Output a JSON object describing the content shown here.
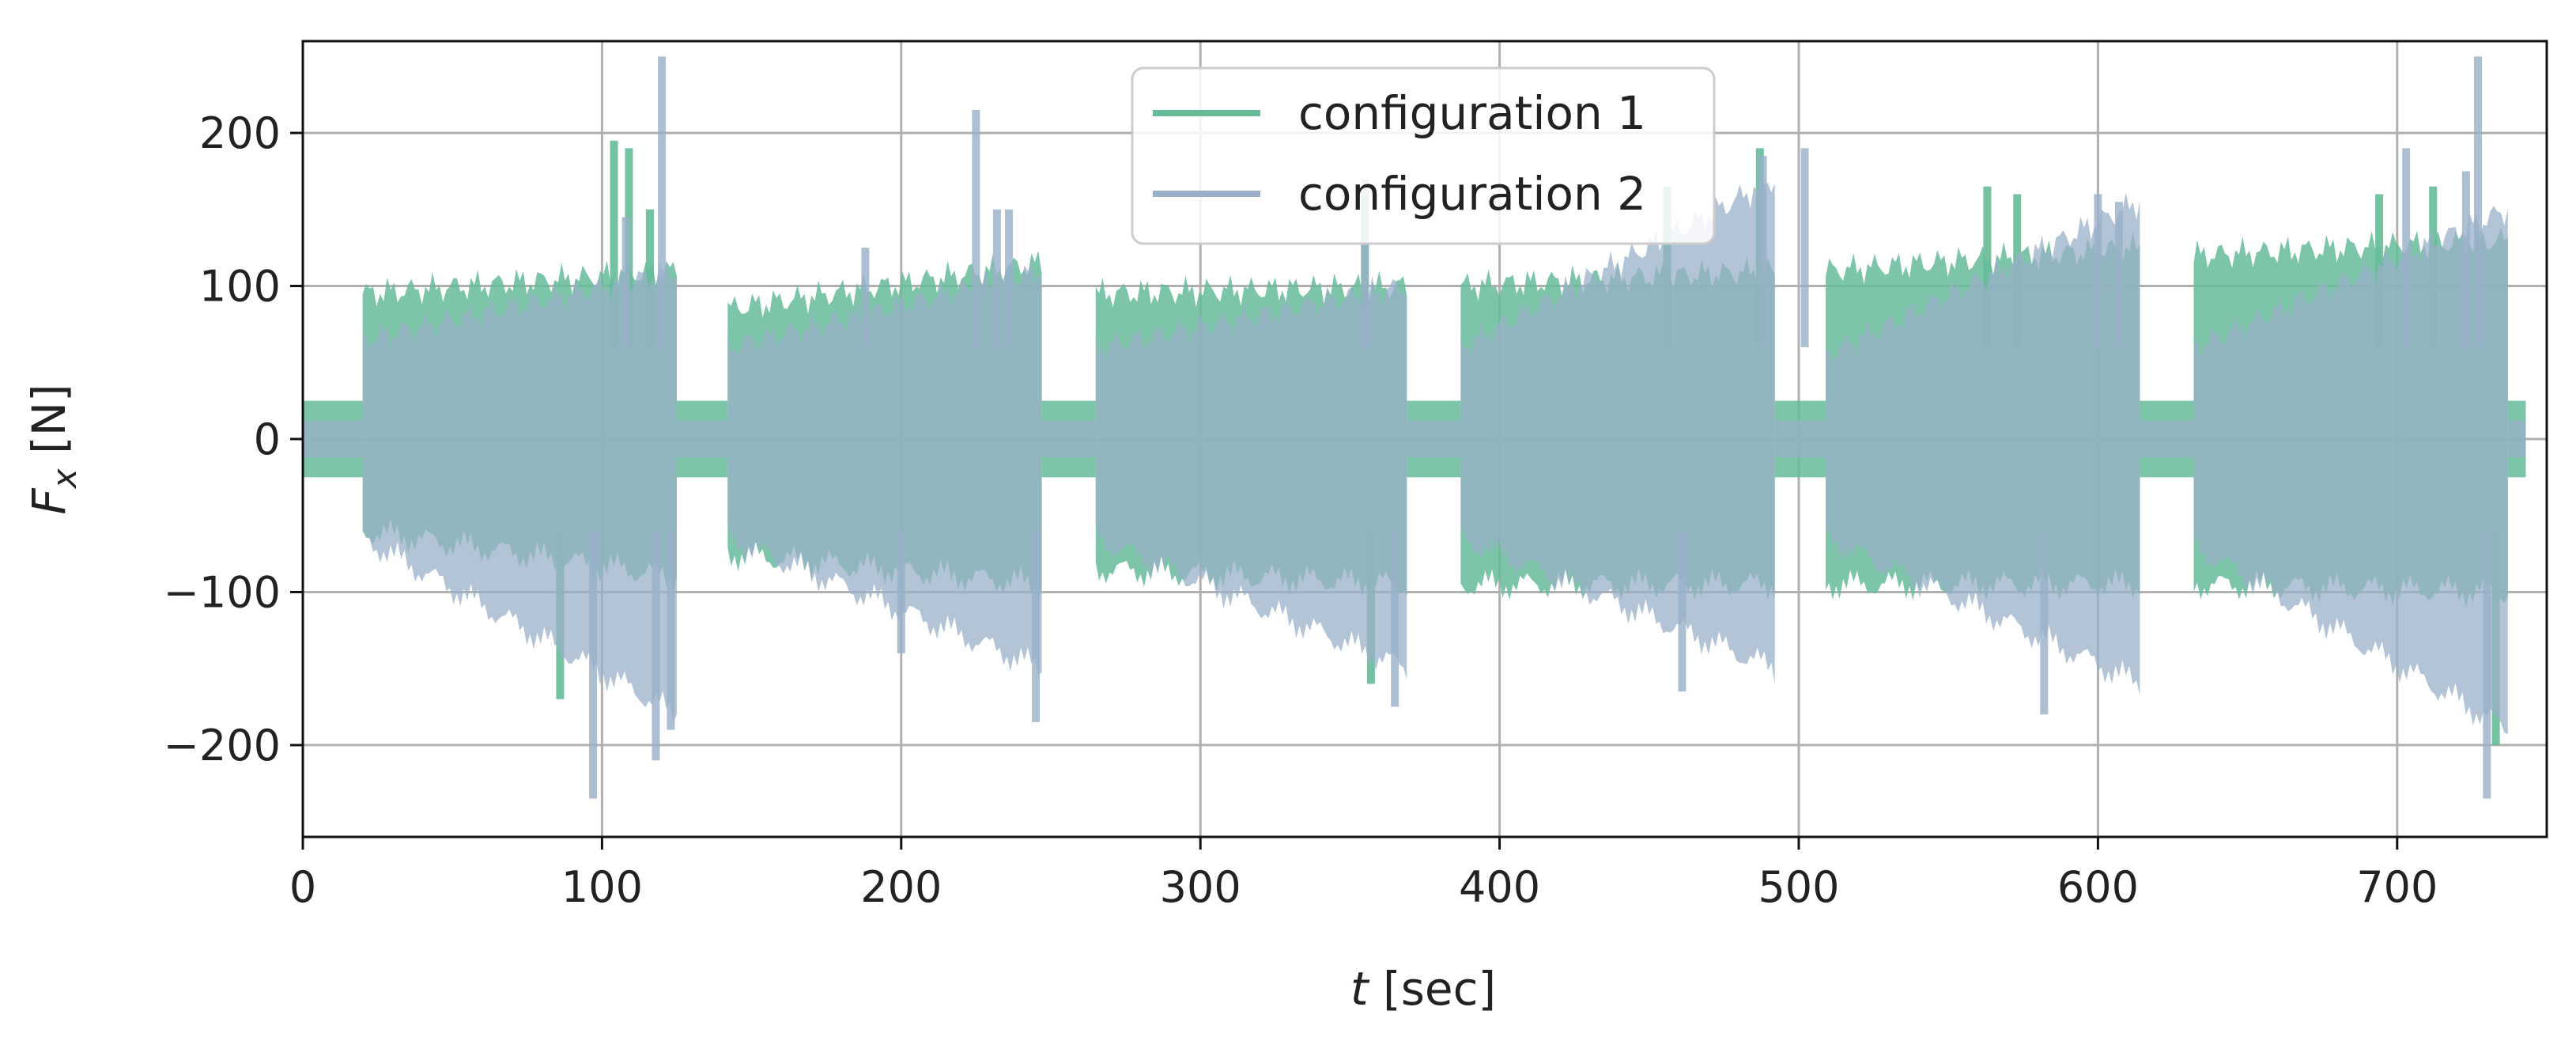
{
  "chart_data": {
    "type": "line",
    "xlabel": "t [sec]",
    "ylabel": "F_x [N]",
    "xlim": [
      0,
      750
    ],
    "ylim": [
      -260,
      260
    ],
    "xticks": [
      0,
      100,
      200,
      300,
      400,
      500,
      600,
      700
    ],
    "yticks": [
      -200,
      -100,
      0,
      100,
      200
    ],
    "ytick_labels": [
      "−200",
      "−100",
      "0",
      "100",
      "200"
    ],
    "grid": true,
    "legend_position": "top-center",
    "segments": [
      {
        "start": 0,
        "end": 20,
        "active": false
      },
      {
        "start": 20,
        "end": 125,
        "active": true
      },
      {
        "start": 125,
        "end": 142,
        "active": false
      },
      {
        "start": 142,
        "end": 247,
        "active": true
      },
      {
        "start": 247,
        "end": 265,
        "active": false
      },
      {
        "start": 265,
        "end": 369,
        "active": true
      },
      {
        "start": 369,
        "end": 387,
        "active": false
      },
      {
        "start": 387,
        "end": 492,
        "active": true
      },
      {
        "start": 492,
        "end": 509,
        "active": false
      },
      {
        "start": 509,
        "end": 614,
        "active": true
      },
      {
        "start": 614,
        "end": 632,
        "active": false
      },
      {
        "start": 632,
        "end": 737,
        "active": true
      },
      {
        "start": 737,
        "end": 743,
        "active": false
      }
    ],
    "series": [
      {
        "name": "configuration 1",
        "color": "#66bb99",
        "idle_amplitude": 25,
        "active_envelope_upper": [
          [
            20,
            95
          ],
          [
            125,
            110
          ],
          [
            142,
            85
          ],
          [
            247,
            115
          ],
          [
            265,
            95
          ],
          [
            369,
            100
          ],
          [
            387,
            100
          ],
          [
            492,
            110
          ],
          [
            509,
            110
          ],
          [
            614,
            125
          ],
          [
            632,
            120
          ],
          [
            737,
            130
          ]
        ],
        "active_envelope_lower": [
          [
            20,
            -60
          ],
          [
            125,
            -90
          ],
          [
            142,
            -75
          ],
          [
            247,
            -95
          ],
          [
            265,
            -85
          ],
          [
            369,
            -95
          ],
          [
            387,
            -95
          ],
          [
            492,
            -95
          ],
          [
            509,
            -95
          ],
          [
            614,
            -95
          ],
          [
            632,
            -95
          ],
          [
            737,
            -100
          ]
        ],
        "peaks": [
          [
            86,
            -170
          ],
          [
            104,
            195
          ],
          [
            109,
            190
          ],
          [
            116,
            150
          ],
          [
            355,
            160
          ],
          [
            357,
            -160
          ],
          [
            456,
            165
          ],
          [
            487,
            190
          ],
          [
            563,
            165
          ],
          [
            573,
            160
          ],
          [
            694,
            160
          ],
          [
            712,
            165
          ],
          [
            733,
            -200
          ]
        ]
      },
      {
        "name": "configuration 2",
        "color": "#99b0c8",
        "idle_amplitude": 12,
        "active_envelope_upper": [
          [
            20,
            65
          ],
          [
            125,
            110
          ],
          [
            142,
            60
          ],
          [
            247,
            110
          ],
          [
            265,
            60
          ],
          [
            369,
            100
          ],
          [
            387,
            60
          ],
          [
            492,
            170
          ],
          [
            509,
            55
          ],
          [
            614,
            155
          ],
          [
            632,
            60
          ],
          [
            737,
            150
          ]
        ],
        "active_envelope_lower": [
          [
            20,
            -65
          ],
          [
            125,
            -180
          ],
          [
            142,
            -65
          ],
          [
            247,
            -150
          ],
          [
            265,
            -65
          ],
          [
            369,
            -150
          ],
          [
            387,
            -65
          ],
          [
            492,
            -150
          ],
          [
            509,
            -65
          ],
          [
            614,
            -160
          ],
          [
            632,
            -70
          ],
          [
            737,
            -190
          ]
        ],
        "peaks": [
          [
            97,
            -235
          ],
          [
            108,
            145
          ],
          [
            120,
            250
          ],
          [
            118,
            -210
          ],
          [
            123,
            -190
          ],
          [
            188,
            125
          ],
          [
            200,
            -140
          ],
          [
            225,
            215
          ],
          [
            232,
            150
          ],
          [
            236,
            150
          ],
          [
            245,
            -185
          ],
          [
            355,
            170
          ],
          [
            365,
            -175
          ],
          [
            461,
            -165
          ],
          [
            488,
            185
          ],
          [
            502,
            190
          ],
          [
            582,
            -180
          ],
          [
            600,
            160
          ],
          [
            607,
            155
          ],
          [
            703,
            190
          ],
          [
            723,
            175
          ],
          [
            727,
            250
          ],
          [
            730,
            -235
          ]
        ]
      }
    ]
  }
}
